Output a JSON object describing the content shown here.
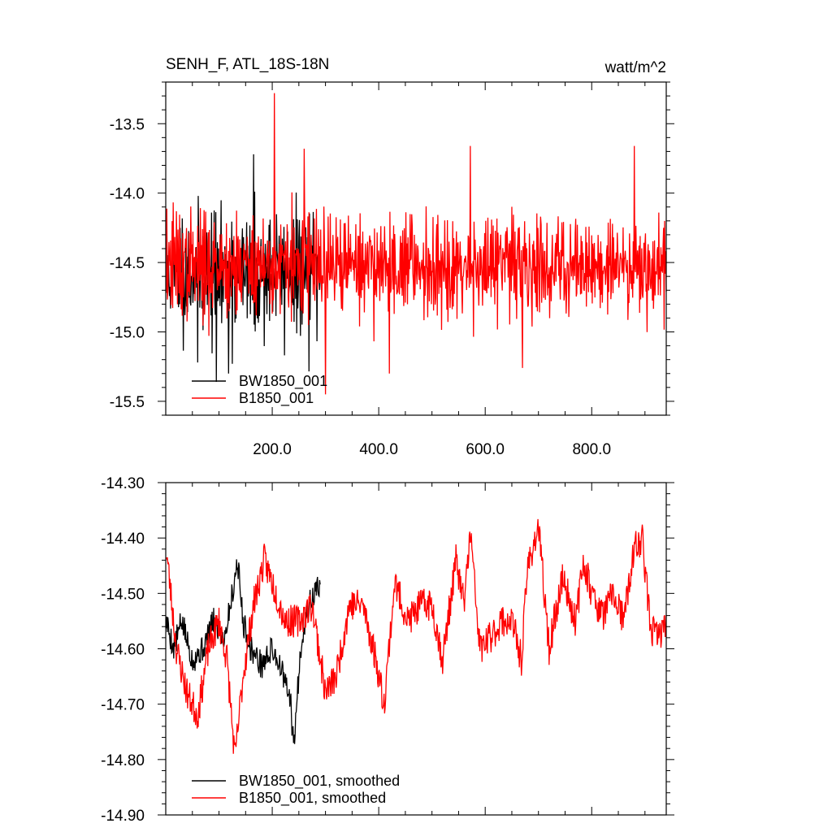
{
  "chart_data": [
    {
      "type": "line",
      "title_left": "SENH_F, ATL_18S-18N",
      "title_right": "watt/m^2",
      "xlim": [
        0,
        940
      ],
      "ylim": [
        -15.6,
        -13.2
      ],
      "xticks": [
        200,
        400,
        600,
        800
      ],
      "xtick_labels": [
        "200.0",
        "400.0",
        "600.0",
        "800.0"
      ],
      "yticks": [
        -15.5,
        -15.0,
        -14.5,
        -14.0,
        -13.5
      ],
      "ytick_labels": [
        "-15.5",
        "-15.0",
        "-14.5",
        "-14.0",
        "-13.5"
      ],
      "legend": [
        "BW1850_001",
        "B1850_001"
      ],
      "legend_position": "bottom-left",
      "series": [
        {
          "name": "BW1850_001",
          "color": "#000000",
          "x_range": [
            1,
            290
          ],
          "mean": -14.58,
          "amplitude": 0.28,
          "seed": 11,
          "peaks": [
            [
              95,
              -15.36
            ],
            [
              165,
              -13.72
            ],
            [
              118,
              -15.3
            ],
            [
              60,
              -15.22
            ]
          ]
        },
        {
          "name": "B1850_001",
          "color": "#ff0000",
          "x_range": [
            1,
            940
          ],
          "mean": -14.52,
          "amplitude": 0.24,
          "seed": 37,
          "peaks": [
            [
              204,
              -13.28
            ],
            [
              260,
              -13.68
            ],
            [
              572,
              -13.66
            ],
            [
              880,
              -13.66
            ],
            [
              420,
              -15.3
            ],
            [
              300,
              -15.45
            ],
            [
              670,
              -15.26
            ]
          ]
        }
      ]
    },
    {
      "type": "line",
      "xlim": [
        0,
        940
      ],
      "ylim": [
        -14.9,
        -14.3
      ],
      "xticks": [
        200,
        400,
        600,
        800
      ],
      "yticks": [
        -14.9,
        -14.8,
        -14.7,
        -14.6,
        -14.5,
        -14.4,
        -14.3
      ],
      "ytick_labels": [
        "-14.90",
        "-14.80",
        "-14.70",
        "-14.60",
        "-14.50",
        "-14.40",
        "-14.30"
      ],
      "legend": [
        "BW1850_001, smoothed",
        "B1850_001, smoothed"
      ],
      "legend_position": "bottom-left",
      "series": [
        {
          "name": "BW1850_001, smoothed",
          "color": "#000000",
          "x_range": [
            1,
            290
          ],
          "seed": 5,
          "anchors": [
            [
              1,
              -14.55
            ],
            [
              15,
              -14.6
            ],
            [
              30,
              -14.55
            ],
            [
              50,
              -14.62
            ],
            [
              70,
              -14.6
            ],
            [
              90,
              -14.55
            ],
            [
              110,
              -14.58
            ],
            [
              125,
              -14.5
            ],
            [
              135,
              -14.44
            ],
            [
              145,
              -14.55
            ],
            [
              160,
              -14.6
            ],
            [
              180,
              -14.63
            ],
            [
              200,
              -14.6
            ],
            [
              215,
              -14.63
            ],
            [
              235,
              -14.7
            ],
            [
              240,
              -14.78
            ],
            [
              255,
              -14.58
            ],
            [
              270,
              -14.52
            ],
            [
              290,
              -14.48
            ]
          ],
          "noise": 0.025
        },
        {
          "name": "B1850_001, smoothed",
          "color": "#ff0000",
          "x_range": [
            1,
            940
          ],
          "seed": 23,
          "anchors": [
            [
              1,
              -14.42
            ],
            [
              20,
              -14.6
            ],
            [
              40,
              -14.68
            ],
            [
              60,
              -14.72
            ],
            [
              80,
              -14.6
            ],
            [
              100,
              -14.55
            ],
            [
              115,
              -14.62
            ],
            [
              130,
              -14.8
            ],
            [
              145,
              -14.65
            ],
            [
              165,
              -14.52
            ],
            [
              185,
              -14.44
            ],
            [
              200,
              -14.48
            ],
            [
              225,
              -14.55
            ],
            [
              250,
              -14.55
            ],
            [
              275,
              -14.52
            ],
            [
              300,
              -14.68
            ],
            [
              320,
              -14.65
            ],
            [
              345,
              -14.52
            ],
            [
              370,
              -14.52
            ],
            [
              395,
              -14.62
            ],
            [
              410,
              -14.7
            ],
            [
              430,
              -14.48
            ],
            [
              455,
              -14.55
            ],
            [
              480,
              -14.52
            ],
            [
              500,
              -14.52
            ],
            [
              520,
              -14.62
            ],
            [
              545,
              -14.44
            ],
            [
              560,
              -14.52
            ],
            [
              572,
              -14.39
            ],
            [
              590,
              -14.6
            ],
            [
              610,
              -14.58
            ],
            [
              630,
              -14.55
            ],
            [
              650,
              -14.55
            ],
            [
              668,
              -14.62
            ],
            [
              680,
              -14.45
            ],
            [
              700,
              -14.38
            ],
            [
              720,
              -14.6
            ],
            [
              745,
              -14.47
            ],
            [
              770,
              -14.55
            ],
            [
              785,
              -14.44
            ],
            [
              800,
              -14.5
            ],
            [
              820,
              -14.54
            ],
            [
              840,
              -14.5
            ],
            [
              860,
              -14.55
            ],
            [
              880,
              -14.42
            ],
            [
              895,
              -14.4
            ],
            [
              910,
              -14.56
            ],
            [
              925,
              -14.58
            ],
            [
              940,
              -14.55
            ]
          ],
          "noise": 0.03
        }
      ]
    }
  ]
}
